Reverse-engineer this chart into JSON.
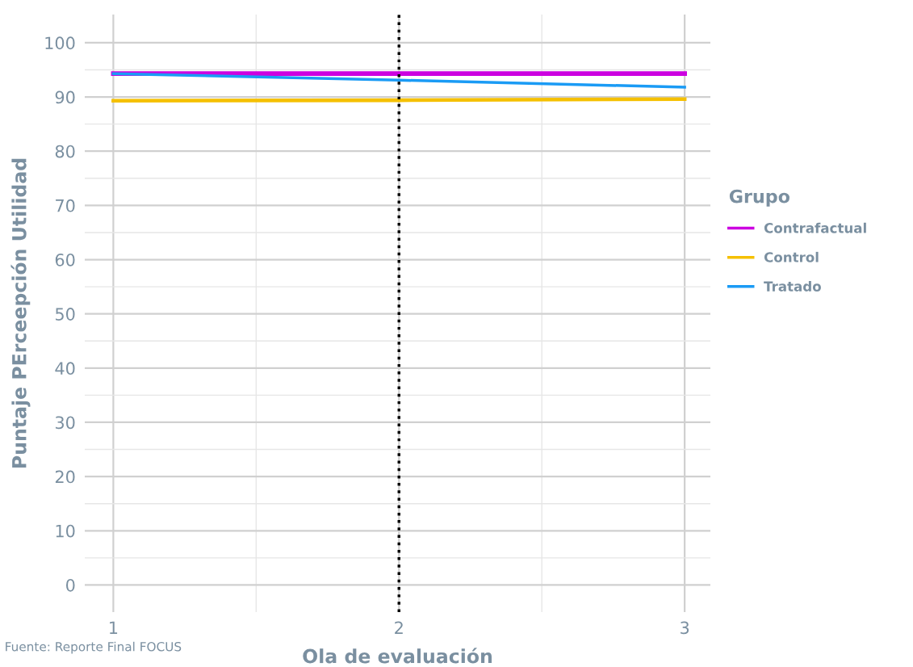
{
  "chart_data": {
    "type": "line",
    "xlabel": "Ola de evaluación",
    "ylabel": "Puntaje PErceepción Utilidad",
    "legend_title": "Grupo",
    "x": [
      1,
      2,
      3
    ],
    "series": [
      {
        "name": "Contrafactual",
        "color": "#cc00e0",
        "values": [
          94.3,
          94.3,
          94.3
        ]
      },
      {
        "name": "Control",
        "color": "#f5c000",
        "values": [
          89.3,
          89.4,
          89.6
        ]
      },
      {
        "name": "Tratado",
        "color": "#1a9bf5",
        "values": [
          94.3,
          93.1,
          91.8
        ]
      }
    ],
    "xlim": [
      0.9,
      3.09
    ],
    "xticks": [
      1,
      2,
      3
    ],
    "ylim": [
      -5,
      105.2
    ],
    "yticks": [
      0,
      10,
      20,
      30,
      40,
      50,
      60,
      70,
      80,
      90,
      100
    ],
    "ref_lines": [
      {
        "axis": "x",
        "value": 2,
        "color": "#000000",
        "line_style": "dotted"
      }
    ],
    "grid": true,
    "legend": "right",
    "marker": "none",
    "line_style": "solid",
    "annotations": [
      "Fuente: Reporte Final FOCUS"
    ]
  }
}
